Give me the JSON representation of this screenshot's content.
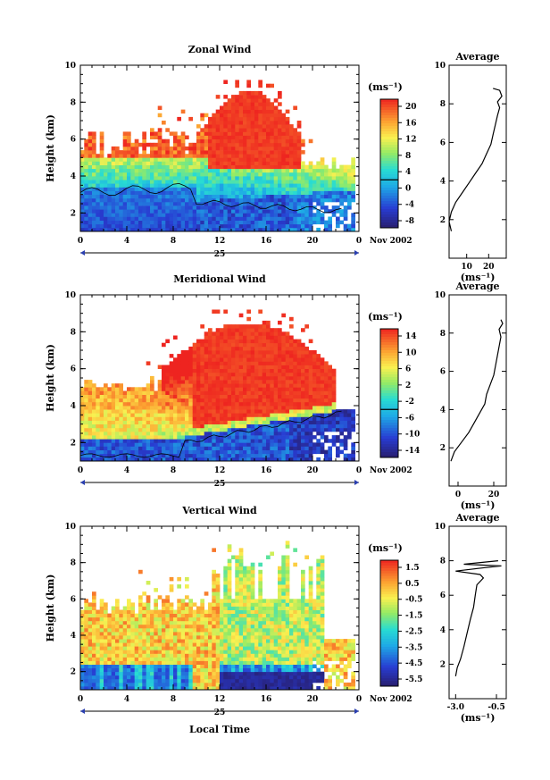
{
  "chart_data": [
    {
      "type": "heatmap",
      "title": "Zonal Wind",
      "ylabel": "Height (km)",
      "xlabel": "",
      "xlim": [
        0,
        24
      ],
      "ylim": [
        1,
        10
      ],
      "x_ticks": [
        "0",
        "4",
        "8",
        "12",
        "16",
        "20",
        "0"
      ],
      "y_ticks": [
        "2",
        "4",
        "6",
        "8",
        "10"
      ],
      "date_label": "25",
      "month_label": "Nov 2002",
      "colorbar": {
        "unit": "(ms⁻¹)",
        "ticks": [
          "20",
          "16",
          "12",
          "8",
          "4",
          "0",
          "-4",
          "-8"
        ],
        "range": [
          -10,
          22
        ]
      },
      "contour_level": 0,
      "profile": {
        "title": "Average",
        "x_ticks": [
          "10",
          "20"
        ],
        "xlim": [
          2,
          28
        ],
        "xlabel": "(ms⁻¹)",
        "points": [
          [
            3,
            1.4
          ],
          [
            2,
            1.9
          ],
          [
            3,
            2.4
          ],
          [
            5,
            2.9
          ],
          [
            8,
            3.4
          ],
          [
            11,
            3.9
          ],
          [
            14,
            4.4
          ],
          [
            17,
            4.9
          ],
          [
            19,
            5.4
          ],
          [
            21,
            5.9
          ],
          [
            22,
            6.4
          ],
          [
            23,
            6.9
          ],
          [
            24,
            7.4
          ],
          [
            25,
            7.8
          ],
          [
            24,
            8.1
          ],
          [
            26,
            8.4
          ],
          [
            25,
            8.7
          ],
          [
            22,
            8.8
          ]
        ]
      }
    },
    {
      "type": "heatmap",
      "title": "Meridional Wind",
      "ylabel": "Height (km)",
      "xlabel": "",
      "xlim": [
        0,
        24
      ],
      "ylim": [
        1,
        10
      ],
      "x_ticks": [
        "0",
        "4",
        "8",
        "12",
        "16",
        "20",
        "0"
      ],
      "y_ticks": [
        "2",
        "4",
        "6",
        "8",
        "10"
      ],
      "date_label": "25",
      "month_label": "Nov 2002",
      "colorbar": {
        "unit": "(ms⁻¹)",
        "ticks": [
          "14",
          "10",
          "6",
          "2",
          "-2",
          "-6",
          "-10",
          "-14"
        ],
        "range": [
          -16,
          16
        ]
      },
      "contour_level": 0,
      "profile": {
        "title": "Average",
        "x_ticks": [
          "0",
          "20"
        ],
        "xlim": [
          -5,
          27
        ],
        "xlabel": "(ms⁻¹)",
        "points": [
          [
            -4,
            1.3
          ],
          [
            -2,
            1.8
          ],
          [
            2,
            2.3
          ],
          [
            6,
            2.8
          ],
          [
            9,
            3.3
          ],
          [
            12,
            3.8
          ],
          [
            15,
            4.3
          ],
          [
            16,
            4.8
          ],
          [
            18,
            5.3
          ],
          [
            20,
            5.8
          ],
          [
            21,
            6.3
          ],
          [
            22,
            6.8
          ],
          [
            23,
            7.3
          ],
          [
            24,
            7.8
          ],
          [
            23,
            8.2
          ],
          [
            25,
            8.5
          ],
          [
            24,
            8.7
          ]
        ]
      }
    },
    {
      "type": "heatmap",
      "title": "Vertical Wind",
      "ylabel": "Height (km)",
      "xlabel": "Local Time",
      "xlim": [
        0,
        24
      ],
      "ylim": [
        1,
        10
      ],
      "x_ticks": [
        "0",
        "4",
        "8",
        "12",
        "16",
        "20",
        "0"
      ],
      "y_ticks": [
        "2",
        "4",
        "6",
        "8",
        "10"
      ],
      "date_label": "25",
      "month_label": "Nov 2002",
      "colorbar": {
        "unit": "(ms⁻¹)",
        "ticks": [
          "1.5",
          "0.5",
          "-0.5",
          "-1.5",
          "-2.5",
          "-3.5",
          "-4.5",
          "-5.5"
        ],
        "range": [
          -6,
          2
        ]
      },
      "profile": {
        "title": "Average",
        "x_ticks": [
          "-3.0",
          "-0.5"
        ],
        "xlim": [
          -3.4,
          0.1
        ],
        "xlabel": "(ms⁻¹)",
        "points": [
          [
            -3.0,
            1.3
          ],
          [
            -2.9,
            1.8
          ],
          [
            -2.7,
            2.3
          ],
          [
            -2.5,
            3.0
          ],
          [
            -2.3,
            3.8
          ],
          [
            -2.1,
            4.6
          ],
          [
            -1.9,
            5.3
          ],
          [
            -1.8,
            6.0
          ],
          [
            -1.7,
            6.6
          ],
          [
            -1.3,
            7.0
          ],
          [
            -1.5,
            7.2
          ],
          [
            -3.0,
            7.4
          ],
          [
            -1.2,
            7.6
          ],
          [
            -0.2,
            7.7
          ],
          [
            -2.5,
            7.8
          ],
          [
            -0.4,
            8.0
          ]
        ]
      }
    }
  ]
}
